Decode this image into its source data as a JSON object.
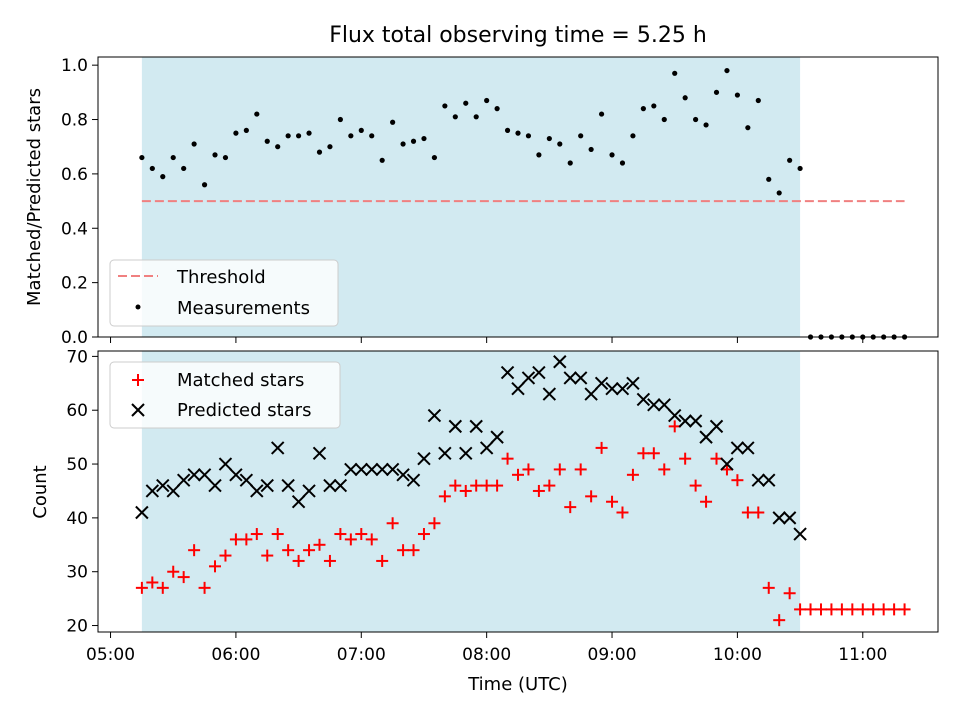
{
  "figure": {
    "title": "Flux total observing time = 5.25 h",
    "colors": {
      "shade": "#add8e6",
      "threshold": "#f08080",
      "measurement": "#000000",
      "matched": "#ff0000",
      "predicted": "#000000"
    }
  },
  "chart_data": [
    {
      "type": "scatter",
      "ylabel": "Matched/Predicted stars",
      "ylim": [
        0,
        1.03
      ],
      "yticks": [
        "0.0",
        "0.2",
        "0.4",
        "0.6",
        "0.8",
        "1.0"
      ],
      "shaded_interval": [
        "05:15",
        "10:30"
      ],
      "legend": {
        "placement": "lower-left",
        "entries": [
          "Threshold",
          "Measurements"
        ]
      },
      "threshold": {
        "name": "Threshold",
        "y": 0.5,
        "x_range": [
          "05:15",
          "11:20"
        ],
        "style": "dashed"
      },
      "series": [
        {
          "name": "Measurements",
          "marker": "dot",
          "x": [
            "05:15",
            "05:20",
            "05:25",
            "05:30",
            "05:35",
            "05:40",
            "05:45",
            "05:50",
            "05:55",
            "06:00",
            "06:05",
            "06:10",
            "06:15",
            "06:20",
            "06:25",
            "06:30",
            "06:35",
            "06:40",
            "06:45",
            "06:50",
            "06:55",
            "07:00",
            "07:05",
            "07:10",
            "07:15",
            "07:20",
            "07:25",
            "07:30",
            "07:35",
            "07:40",
            "07:45",
            "07:50",
            "07:55",
            "08:00",
            "08:05",
            "08:10",
            "08:15",
            "08:20",
            "08:25",
            "08:30",
            "08:35",
            "08:40",
            "08:45",
            "08:50",
            "08:55",
            "09:00",
            "09:05",
            "09:10",
            "09:15",
            "09:20",
            "09:25",
            "09:30",
            "09:35",
            "09:40",
            "09:45",
            "09:50",
            "09:55",
            "10:00",
            "10:05",
            "10:10",
            "10:15",
            "10:20",
            "10:25",
            "10:30",
            "10:35",
            "10:40",
            "10:45",
            "10:50",
            "10:55",
            "11:00",
            "11:05",
            "11:10",
            "11:15",
            "11:20"
          ],
          "y": [
            0.66,
            0.62,
            0.59,
            0.66,
            0.62,
            0.71,
            0.56,
            0.67,
            0.66,
            0.75,
            0.76,
            0.82,
            0.72,
            0.7,
            0.74,
            0.74,
            0.75,
            0.68,
            0.7,
            0.8,
            0.74,
            0.76,
            0.74,
            0.65,
            0.79,
            0.71,
            0.72,
            0.73,
            0.66,
            0.85,
            0.81,
            0.86,
            0.81,
            0.87,
            0.84,
            0.76,
            0.75,
            0.74,
            0.67,
            0.73,
            0.71,
            0.64,
            0.74,
            0.69,
            0.82,
            0.67,
            0.64,
            0.74,
            0.84,
            0.85,
            0.8,
            0.97,
            0.88,
            0.8,
            0.78,
            0.9,
            0.98,
            0.89,
            0.77,
            0.87,
            0.58,
            0.53,
            0.65,
            0.62,
            0.0,
            0.0,
            0.0,
            0.0,
            0.0,
            0.0,
            0.0,
            0.0,
            0.0,
            0.0
          ]
        }
      ]
    },
    {
      "type": "scatter",
      "xlabel": "Time (UTC)",
      "ylabel": "Count",
      "ylim": [
        18.8,
        71
      ],
      "yticks": [
        "20",
        "30",
        "40",
        "50",
        "60",
        "70"
      ],
      "xticks": [
        "05:00",
        "06:00",
        "07:00",
        "08:00",
        "09:00",
        "10:00",
        "11:00"
      ],
      "shaded_interval": [
        "05:15",
        "10:30"
      ],
      "legend": {
        "placement": "upper-left",
        "entries": [
          "Matched stars",
          "Predicted stars"
        ]
      },
      "series": [
        {
          "name": "Matched stars",
          "marker": "plus",
          "x": [
            "05:15",
            "05:20",
            "05:25",
            "05:30",
            "05:35",
            "05:40",
            "05:45",
            "05:50",
            "05:55",
            "06:00",
            "06:05",
            "06:10",
            "06:15",
            "06:20",
            "06:25",
            "06:30",
            "06:35",
            "06:40",
            "06:45",
            "06:50",
            "06:55",
            "07:00",
            "07:05",
            "07:10",
            "07:15",
            "07:20",
            "07:25",
            "07:30",
            "07:35",
            "07:40",
            "07:45",
            "07:50",
            "07:55",
            "08:00",
            "08:05",
            "08:10",
            "08:15",
            "08:20",
            "08:25",
            "08:30",
            "08:35",
            "08:40",
            "08:45",
            "08:50",
            "08:55",
            "09:00",
            "09:05",
            "09:10",
            "09:15",
            "09:20",
            "09:25",
            "09:30",
            "09:35",
            "09:40",
            "09:45",
            "09:50",
            "09:55",
            "10:00",
            "10:05",
            "10:10",
            "10:15",
            "10:20",
            "10:25",
            "10:30",
            "10:35",
            "10:40",
            "10:45",
            "10:50",
            "10:55",
            "11:00",
            "11:05",
            "11:10",
            "11:15",
            "11:20"
          ],
          "y": [
            27,
            28,
            27,
            30,
            29,
            34,
            27,
            31,
            33,
            36,
            36,
            37,
            33,
            37,
            34,
            32,
            34,
            35,
            32,
            37,
            36,
            37,
            36,
            32,
            39,
            34,
            34,
            37,
            39,
            44,
            46,
            45,
            46,
            46,
            46,
            51,
            48,
            49,
            45,
            46,
            49,
            42,
            49,
            44,
            53,
            43,
            41,
            48,
            52,
            52,
            49,
            57,
            51,
            46,
            43,
            51,
            49,
            47,
            41,
            41,
            27,
            21,
            26,
            23,
            23,
            23,
            23,
            23,
            23,
            23,
            23,
            23,
            23,
            23
          ]
        },
        {
          "name": "Predicted stars",
          "marker": "x",
          "x": [
            "05:15",
            "05:20",
            "05:25",
            "05:30",
            "05:35",
            "05:40",
            "05:45",
            "05:50",
            "05:55",
            "06:00",
            "06:05",
            "06:10",
            "06:15",
            "06:20",
            "06:25",
            "06:30",
            "06:35",
            "06:40",
            "06:45",
            "06:50",
            "06:55",
            "07:00",
            "07:05",
            "07:10",
            "07:15",
            "07:20",
            "07:25",
            "07:30",
            "07:35",
            "07:40",
            "07:45",
            "07:50",
            "07:55",
            "08:00",
            "08:05",
            "08:10",
            "08:15",
            "08:20",
            "08:25",
            "08:30",
            "08:35",
            "08:40",
            "08:45",
            "08:50",
            "08:55",
            "09:00",
            "09:05",
            "09:10",
            "09:15",
            "09:20",
            "09:25",
            "09:30",
            "09:35",
            "09:40",
            "09:45",
            "09:50",
            "09:55",
            "10:00",
            "10:05",
            "10:10",
            "10:15",
            "10:20",
            "10:25",
            "10:30"
          ],
          "y": [
            41,
            45,
            46,
            45,
            47,
            48,
            48,
            46,
            50,
            48,
            47,
            45,
            46,
            53,
            46,
            43,
            45,
            52,
            46,
            46,
            49,
            49,
            49,
            49,
            49,
            48,
            47,
            51,
            59,
            52,
            57,
            52,
            57,
            53,
            55,
            67,
            64,
            66,
            67,
            63,
            69,
            66,
            66,
            63,
            65,
            64,
            64,
            65,
            62,
            61,
            61,
            59,
            58,
            58,
            55,
            57,
            50,
            53,
            53,
            47,
            47,
            40,
            40,
            37
          ]
        }
      ]
    }
  ]
}
